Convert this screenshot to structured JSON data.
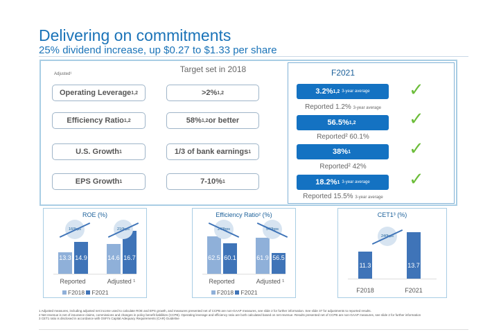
{
  "header": {
    "title": "Delivering on commitments",
    "subtitle": "25% dividend increase, up $0.27 to $1.33 per share"
  },
  "targets": {
    "adjusted_label": "Adjusted¹",
    "header": "Target set in 2018",
    "rows": [
      {
        "label": "Operating Leverage",
        "label_sup": "1,2",
        "target": ">2%",
        "target_sup": "1,2",
        "target_suffix": ""
      },
      {
        "label": "Efficiency Ratio",
        "label_sup": "1,2",
        "target": "58%",
        "target_sup": "1,2",
        "target_suffix": " or better"
      },
      {
        "label": "U.S. Growth",
        "label_sup": "1",
        "target": "1/3 of bank earnings",
        "target_sup": "1",
        "target_suffix": ""
      },
      {
        "label": "EPS Growth",
        "label_sup": "1",
        "target": "7-10%",
        "target_sup": "1",
        "target_suffix": ""
      }
    ]
  },
  "results": {
    "header": "F2021",
    "accent": "#1472c2",
    "check_color": "#6cbd3a",
    "rows": [
      {
        "value": "3.2%",
        "sup": "1,2",
        "note": "3-year average",
        "reported": "Reported 1.2%",
        "reported_note": "3-year average",
        "achieved": true
      },
      {
        "value": "56.5%",
        "sup": "1,2",
        "note": "",
        "reported": "Reported² 60.1%",
        "reported_note": "",
        "achieved": true
      },
      {
        "value": "38%",
        "sup": "1",
        "note": "",
        "reported": "Reported² 42%",
        "reported_note": "",
        "achieved": true
      },
      {
        "value": "18.2%",
        "sup": "1",
        "note": "3-year average",
        "reported": "Reported 15.5%",
        "reported_note": "3-year average",
        "achieved": true
      }
    ]
  },
  "chart_data": [
    {
      "type": "bar",
      "title": "ROE (%)",
      "categories": [
        "Reported",
        "Adjusted ¹"
      ],
      "ymin": 10,
      "series": [
        {
          "name": "F2018",
          "color": "#8fb0d9",
          "values": [
            13.3,
            14.6
          ]
        },
        {
          "name": "F2021",
          "color": "#3f74b8",
          "values": [
            14.9,
            16.7
          ]
        }
      ],
      "annotations": [
        "160bps",
        "210bps"
      ],
      "trend": "up"
    },
    {
      "type": "bar",
      "title": "Efficiency Ratio² (%)",
      "categories": [
        "Reported",
        "Adjusted ¹"
      ],
      "ymin": 49,
      "series": [
        {
          "name": "F2018",
          "color": "#8fb0d9",
          "values": [
            62.5,
            61.9
          ]
        },
        {
          "name": "F2021",
          "color": "#3f74b8",
          "values": [
            60.1,
            56.5
          ]
        }
      ],
      "annotations": [
        "240bps",
        "540bps"
      ],
      "trend": "down"
    },
    {
      "type": "bar",
      "title": "CET1³ (%)",
      "categories": [
        "F2018",
        "F2021"
      ],
      "ymin": 8,
      "series": [
        {
          "color": "#3f74b8",
          "values": [
            11.3,
            13.7
          ]
        }
      ],
      "annotations": [
        "240bps"
      ],
      "trend": "up"
    }
  ],
  "footnotes": [
    "1 Adjusted measures, including adjusted net income used to calculate ROE and EPS growth, and measures presented net of CCPB are non-GAAP measures, see slide 2 for further information. See slide 37 for adjustments to reported results.",
    "2 Net revenue is net of insurance claims, commissions and changes in policy benefit liabilities (CCPB). Operating leverage and efficiency ratio are both calculated based on net revenue. Results presented net of CCPB are non-GAAP measures, see slide 2 for further information",
    "3 CET1 ratio is disclosed in accordance with OSFI's Capital Adequacy Requirements (CAR) Guideline"
  ]
}
